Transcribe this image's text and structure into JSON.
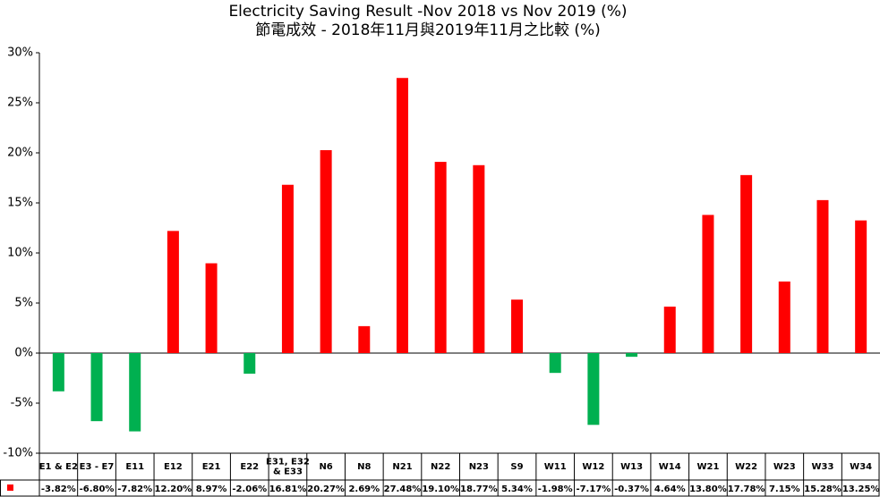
{
  "chart_data": {
    "type": "bar",
    "title": "Electricity Saving Result -Nov 2018 vs Nov 2019 (%)",
    "subtitle": "節電成效 - 2018年11月與2019年11月之比較 (%)",
    "ylim": [
      -10,
      30
    ],
    "yticks": [
      "30%",
      "25%",
      "20%",
      "15%",
      "10%",
      "5%",
      "0%",
      "-5%",
      "-10%"
    ],
    "ytick_values": [
      30,
      25,
      20,
      15,
      10,
      5,
      0,
      -5,
      -10
    ],
    "grid": false,
    "data_table": true,
    "categories": [
      [
        "E1 & E2"
      ],
      [
        "E3 - E7"
      ],
      [
        "E11"
      ],
      [
        "E12"
      ],
      [
        "E21"
      ],
      [
        "E22"
      ],
      [
        "E31, E32",
        "& E33"
      ],
      [
        "N6"
      ],
      [
        "N8"
      ],
      [
        "N21"
      ],
      [
        "N22"
      ],
      [
        "N23"
      ],
      [
        "S9"
      ],
      [
        "W11"
      ],
      [
        "W12"
      ],
      [
        "W13"
      ],
      [
        "W14"
      ],
      [
        "W21"
      ],
      [
        "W22"
      ],
      [
        "W23"
      ],
      [
        "W33"
      ],
      [
        "W34"
      ]
    ],
    "values": [
      -3.82,
      -6.8,
      -7.82,
      12.2,
      8.97,
      -2.06,
      16.81,
      20.27,
      2.69,
      27.48,
      19.1,
      18.77,
      5.34,
      -1.98,
      -7.17,
      -0.37,
      4.64,
      13.8,
      17.78,
      7.15,
      15.28,
      13.25
    ],
    "value_labels": [
      "-3.82%",
      "-6.80%",
      "-7.82%",
      "12.20%",
      "8.97%",
      "-2.06%",
      "16.81%",
      "20.27%",
      "2.69%",
      "27.48%",
      "19.10%",
      "18.77%",
      "5.34%",
      "-1.98%",
      "-7.17%",
      "-0.37%",
      "4.64%",
      "13.80%",
      "17.78%",
      "7.15%",
      "15.28%",
      "13.25%"
    ],
    "colors": {
      "positive": "#ff0000",
      "negative": "#00b050",
      "legend_key": "#ff0000",
      "axis": "#000000"
    }
  }
}
